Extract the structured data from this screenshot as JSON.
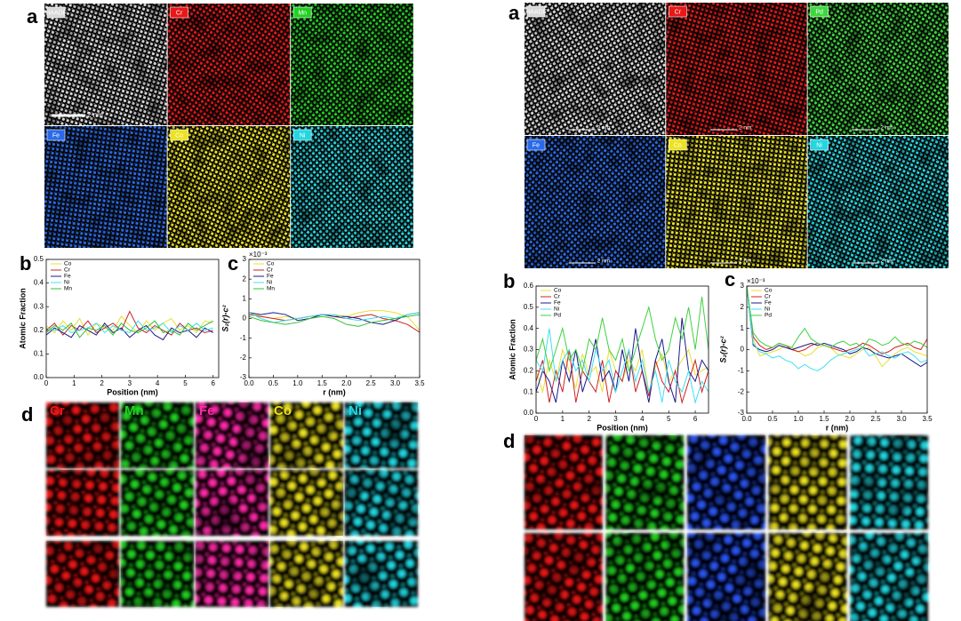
{
  "figure": {
    "left": {
      "panel_labels": [
        "a",
        "b",
        "c",
        "d"
      ],
      "maps": [
        "HAADF",
        "Cr",
        "Mn",
        "Fe",
        "Co",
        "Ni"
      ],
      "map_colors": [
        "#d8d8d8",
        "#e81818",
        "#22d022",
        "#2a6ae8",
        "#ece222",
        "#24d6e0"
      ],
      "scale_bar": "2 nm",
      "d_labels": [
        "Cr",
        "Mn",
        "Fe",
        "Co",
        "Ni"
      ],
      "d_colors": [
        "#e81818",
        "#22d022",
        "#ff2aa8",
        "#ece222",
        "#24d6e0"
      ]
    },
    "right": {
      "panel_labels": [
        "a",
        "b",
        "c",
        "d"
      ],
      "maps": [
        "HAADF",
        "Cr",
        "Pd",
        "Fe",
        "Co",
        "Ni"
      ],
      "map_colors": [
        "#d8d8d8",
        "#e81818",
        "#3ed83e",
        "#2a6ae8",
        "#ece222",
        "#24d6e0"
      ],
      "scale_bars": [
        "2 nm",
        "2 nm",
        "2 nm",
        "2 nm",
        "2 nm",
        "2 nm"
      ],
      "d_colors": [
        "#e81818",
        "#22d022",
        "#2a55f0",
        "#ece222",
        "#24d6e0"
      ]
    }
  },
  "chart_data": [
    {
      "type": "line",
      "x_label": "Position (nm)",
      "y_label": "Atomic Fraction",
      "xlim": [
        0,
        6.2
      ],
      "ylim": [
        0,
        0.5
      ],
      "xticks": [
        0,
        1,
        2,
        3,
        4,
        5,
        6
      ],
      "yticks": [
        {
          "value": 0,
          "label": "0.0"
        },
        0.1,
        0.2,
        0.3,
        0.4,
        0.5
      ],
      "legend": "top-left",
      "x": [
        0,
        0.3,
        0.6,
        0.9,
        1.2,
        1.5,
        1.8,
        2.1,
        2.4,
        2.7,
        3.0,
        3.3,
        3.6,
        3.9,
        4.2,
        4.5,
        4.8,
        5.1,
        5.4,
        5.7,
        6.0
      ],
      "series": [
        {
          "name": "Co",
          "color": "#e8e030",
          "values": [
            0.22,
            0.19,
            0.24,
            0.2,
            0.25,
            0.18,
            0.23,
            0.21,
            0.2,
            0.26,
            0.22,
            0.19,
            0.24,
            0.2,
            0.23,
            0.25,
            0.2,
            0.22,
            0.19,
            0.24,
            0.23
          ]
        },
        {
          "name": "Cr",
          "color": "#d02020",
          "values": [
            0.2,
            0.23,
            0.18,
            0.22,
            0.2,
            0.24,
            0.19,
            0.21,
            0.23,
            0.2,
            0.28,
            0.21,
            0.19,
            0.22,
            0.2,
            0.18,
            0.23,
            0.2,
            0.21,
            0.19,
            0.2
          ]
        },
        {
          "name": "Fe",
          "color": "#1a1a8c",
          "values": [
            0.18,
            0.21,
            0.19,
            0.17,
            0.22,
            0.2,
            0.18,
            0.23,
            0.19,
            0.21,
            0.17,
            0.2,
            0.22,
            0.18,
            0.16,
            0.21,
            0.19,
            0.2,
            0.17,
            0.21,
            0.19
          ]
        },
        {
          "name": "Ni",
          "color": "#40e0f0",
          "values": [
            0.21,
            0.2,
            0.22,
            0.19,
            0.2,
            0.21,
            0.23,
            0.19,
            0.22,
            0.2,
            0.19,
            0.24,
            0.2,
            0.21,
            0.23,
            0.19,
            0.22,
            0.2,
            0.23,
            0.2,
            0.21
          ]
        },
        {
          "name": "Mn",
          "color": "#30c030",
          "values": [
            0.19,
            0.22,
            0.2,
            0.23,
            0.17,
            0.21,
            0.2,
            0.22,
            0.18,
            0.23,
            0.2,
            0.19,
            0.21,
            0.24,
            0.19,
            0.2,
            0.18,
            0.23,
            0.2,
            0.22,
            0.24
          ]
        }
      ]
    },
    {
      "type": "line",
      "x_label": "r (nm)",
      "y_label": "S₂(r)-c²",
      "multiplier": "×10⁻³",
      "xlim": [
        0,
        3.5
      ],
      "ylim": [
        -3,
        3
      ],
      "xticks": [
        {
          "value": 0,
          "label": "0.0"
        },
        0.5,
        {
          "value": 1,
          "label": "1.0"
        },
        1.5,
        {
          "value": 2,
          "label": "2.0"
        },
        2.5,
        {
          "value": 3,
          "label": "3.0"
        },
        3.5
      ],
      "yticks": [
        -3,
        -2,
        -1,
        0,
        1,
        2,
        3
      ],
      "legend": "top-left",
      "x": [
        0,
        0.25,
        0.5,
        0.75,
        1,
        1.25,
        1.5,
        1.75,
        2,
        2.25,
        2.5,
        2.75,
        3,
        3.25,
        3.5
      ],
      "series": [
        {
          "name": "Co",
          "color": "#e8e030",
          "values": [
            0.3,
            0.1,
            0.0,
            0.1,
            0.0,
            0.1,
            0.2,
            0.2,
            0.1,
            0.3,
            0.4,
            0.4,
            0.3,
            0.1,
            -0.6
          ]
        },
        {
          "name": "Cr",
          "color": "#d02020",
          "values": [
            0.2,
            0.1,
            0.0,
            -0.1,
            0.0,
            0.1,
            0.2,
            0.1,
            0.0,
            0.1,
            0.2,
            0.0,
            -0.1,
            -0.3,
            -0.7
          ]
        },
        {
          "name": "Fe",
          "color": "#1a1a8c",
          "values": [
            0.3,
            0.2,
            0.3,
            0.2,
            -0.1,
            0.0,
            0.2,
            0.1,
            0.1,
            0.0,
            -0.2,
            -0.3,
            -0.1,
            0.2,
            0.3
          ]
        },
        {
          "name": "Ni",
          "color": "#40e0f0",
          "values": [
            0.3,
            0.0,
            -0.2,
            -0.1,
            0.0,
            0.1,
            0.2,
            0.2,
            0.0,
            -0.1,
            0.0,
            0.1,
            0.0,
            0.2,
            0.3
          ]
        },
        {
          "name": "Mn",
          "color": "#30c030",
          "values": [
            0.1,
            -0.1,
            -0.2,
            -0.3,
            -0.2,
            0.0,
            0.1,
            0.0,
            -0.3,
            -0.4,
            -0.2,
            -0.1,
            0.0,
            0.1,
            0.2
          ]
        }
      ]
    },
    {
      "type": "line",
      "x_label": "Position (nm)",
      "y_label": "Atomic Fraction",
      "xlim": [
        0,
        6.5
      ],
      "ylim": [
        0,
        0.6
      ],
      "xticks": [
        0,
        1,
        2,
        3,
        4,
        5,
        6
      ],
      "yticks": [
        {
          "value": 0,
          "label": "0.0"
        },
        0.1,
        0.2,
        0.3,
        0.4,
        0.5,
        0.6
      ],
      "legend": "top-left",
      "x": [
        0,
        0.25,
        0.5,
        0.75,
        1,
        1.25,
        1.5,
        1.75,
        2,
        2.25,
        2.5,
        2.75,
        3,
        3.25,
        3.5,
        3.75,
        4,
        4.25,
        4.5,
        4.75,
        5,
        5.25,
        5.5,
        5.75,
        6,
        6.25,
        6.5
      ],
      "series": [
        {
          "name": "Co",
          "color": "#e8e030",
          "values": [
            0.2,
            0.1,
            0.25,
            0.15,
            0.3,
            0.2,
            0.12,
            0.28,
            0.18,
            0.22,
            0.1,
            0.3,
            0.2,
            0.15,
            0.25,
            0.2,
            0.3,
            0.1,
            0.22,
            0.28,
            0.15,
            0.2,
            0.25,
            0.3,
            0.18,
            0.2,
            0.22
          ]
        },
        {
          "name": "Cr",
          "color": "#d02020",
          "values": [
            0.15,
            0.25,
            0.05,
            0.2,
            0.1,
            0.3,
            0.05,
            0.2,
            0.15,
            0.1,
            0.25,
            0.05,
            0.2,
            0.15,
            0.3,
            0.1,
            0.2,
            0.08,
            0.25,
            0.15,
            0.1,
            0.2,
            0.05,
            0.15,
            0.25,
            0.1,
            0.2
          ]
        },
        {
          "name": "Fe",
          "color": "#1a1a8c",
          "values": [
            0.1,
            0.2,
            0.15,
            0.05,
            0.25,
            0.15,
            0.3,
            0.1,
            0.2,
            0.35,
            0.15,
            0.2,
            0.1,
            0.3,
            0.15,
            0.4,
            0.2,
            0.05,
            0.25,
            0.35,
            0.15,
            0.05,
            0.45,
            0.2,
            0.15,
            0.25,
            0.2
          ]
        },
        {
          "name": "Ni",
          "color": "#40e0f0",
          "values": [
            0.25,
            0.2,
            0.4,
            0.15,
            0.25,
            0.3,
            0.2,
            0.25,
            0.15,
            0.3,
            0.2,
            0.25,
            0.1,
            0.2,
            0.3,
            0.15,
            0.25,
            0.1,
            0.2,
            0.05,
            0.25,
            0.15,
            0.1,
            0.2,
            0.05,
            0.15,
            0.1
          ]
        },
        {
          "name": "Pd",
          "color": "#40d040",
          "values": [
            0.25,
            0.35,
            0.2,
            0.3,
            0.4,
            0.25,
            0.3,
            0.2,
            0.35,
            0.3,
            0.45,
            0.3,
            0.25,
            0.35,
            0.2,
            0.3,
            0.4,
            0.5,
            0.35,
            0.25,
            0.3,
            0.45,
            0.35,
            0.5,
            0.3,
            0.55,
            0.3
          ]
        }
      ]
    },
    {
      "type": "line",
      "x_label": "r (nm)",
      "y_label": "S₂(r)-c²",
      "multiplier": "×10⁻³",
      "xlim": [
        0,
        3.5
      ],
      "ylim": [
        -3,
        3
      ],
      "xticks": [
        {
          "value": 0,
          "label": "0.0"
        },
        0.5,
        {
          "value": 1,
          "label": "1.0"
        },
        1.5,
        {
          "value": 2,
          "label": "2.0"
        },
        2.5,
        {
          "value": 3,
          "label": "3.0"
        },
        3.5
      ],
      "yticks": [
        -3,
        -2,
        -1,
        0,
        1,
        2,
        3
      ],
      "legend": "top-left",
      "x": [
        0,
        0.125,
        0.25,
        0.375,
        0.5,
        0.625,
        0.75,
        0.875,
        1,
        1.125,
        1.25,
        1.375,
        1.5,
        1.625,
        1.75,
        1.875,
        2,
        2.125,
        2.25,
        2.375,
        2.5,
        2.625,
        2.75,
        2.875,
        3,
        3.125,
        3.25,
        3.375,
        3.5
      ],
      "series": [
        {
          "name": "Co",
          "color": "#e8e030",
          "values": [
            3,
            0.5,
            -0.3,
            -0.2,
            -0.1,
            0,
            0.2,
            0.1,
            -0.1,
            -0.3,
            -0.2,
            0.1,
            0.2,
            0.1,
            -0.2,
            -0.3,
            -0.4,
            -0.2,
            0,
            0.1,
            -0.3,
            -0.8,
            -0.5,
            -0.2,
            0,
            0.1,
            -0.1,
            -0.2,
            -0.3
          ]
        },
        {
          "name": "Cr",
          "color": "#d02020",
          "values": [
            3,
            0.6,
            0.2,
            0,
            0.1,
            0.3,
            0.2,
            0,
            -0.1,
            0,
            0.2,
            0.3,
            0.2,
            0.1,
            0,
            -0.1,
            0,
            0.1,
            0.3,
            0.2,
            0,
            -0.2,
            -0.1,
            0.1,
            0.2,
            0.3,
            0.1,
            0,
            0.5
          ]
        },
        {
          "name": "Fe",
          "color": "#1a1a8c",
          "values": [
            3,
            0.2,
            0,
            -0.1,
            0,
            0.2,
            0.1,
            0,
            0.1,
            0.2,
            0.3,
            0.2,
            0.3,
            0.2,
            0.1,
            0,
            -0.2,
            -0.1,
            0.1,
            0,
            -0.2,
            -0.3,
            -0.4,
            -0.3,
            -0.2,
            -0.4,
            -0.6,
            -0.8,
            -0.6
          ]
        },
        {
          "name": "Ni",
          "color": "#40e0f0",
          "values": [
            3,
            0.3,
            -0.1,
            -0.2,
            -0.4,
            -0.3,
            -0.5,
            -0.6,
            -0.9,
            -0.7,
            -0.9,
            -1.0,
            -0.8,
            -0.5,
            -0.3,
            -0.2,
            -0.1,
            0,
            0.1,
            -0.3,
            -0.2,
            -0.1,
            -0.3,
            -0.4,
            -0.2,
            -0.1,
            -0.3,
            -0.6,
            -0.5
          ]
        },
        {
          "name": "Pd",
          "color": "#40d040",
          "values": [
            3,
            0.8,
            0.4,
            0.2,
            0.1,
            0.3,
            0.2,
            0.1,
            0.6,
            1.0,
            0.5,
            0.3,
            0.2,
            0.1,
            0.3,
            0.4,
            0.2,
            0.3,
            0.1,
            0.5,
            0.4,
            0.2,
            0.3,
            0.6,
            0.3,
            0.2,
            0.4,
            0.3,
            0.1
          ]
        }
      ]
    }
  ]
}
